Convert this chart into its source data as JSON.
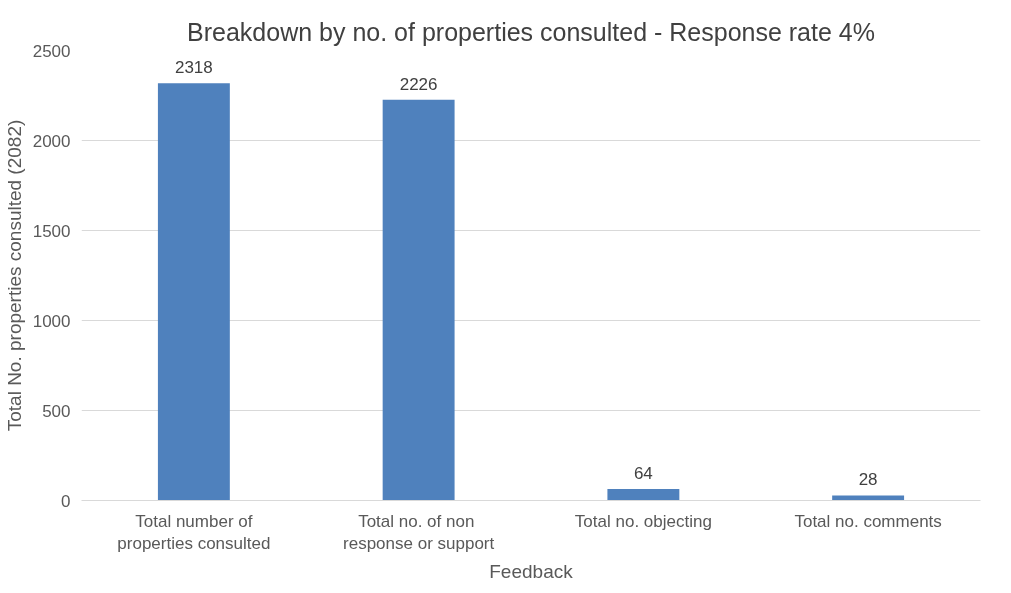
{
  "chart_data": {
    "type": "bar",
    "title": "Breakdown by no. of properties consulted - Response rate 4%",
    "xlabel": "Feedback",
    "ylabel": "Total No. properties consulted (2082)",
    "categories": [
      "Total number of\nproperties consulted",
      "Total no. of  non\nresponse or support",
      "Total no. objecting",
      "Total no. comments"
    ],
    "values": [
      2318,
      2226,
      64,
      28
    ],
    "color": "#4f81bd",
    "ylim": [
      0,
      2500
    ],
    "yticks": [
      0,
      500,
      1000,
      1500,
      2000,
      2500
    ],
    "grid": "y",
    "data_labels": true
  }
}
